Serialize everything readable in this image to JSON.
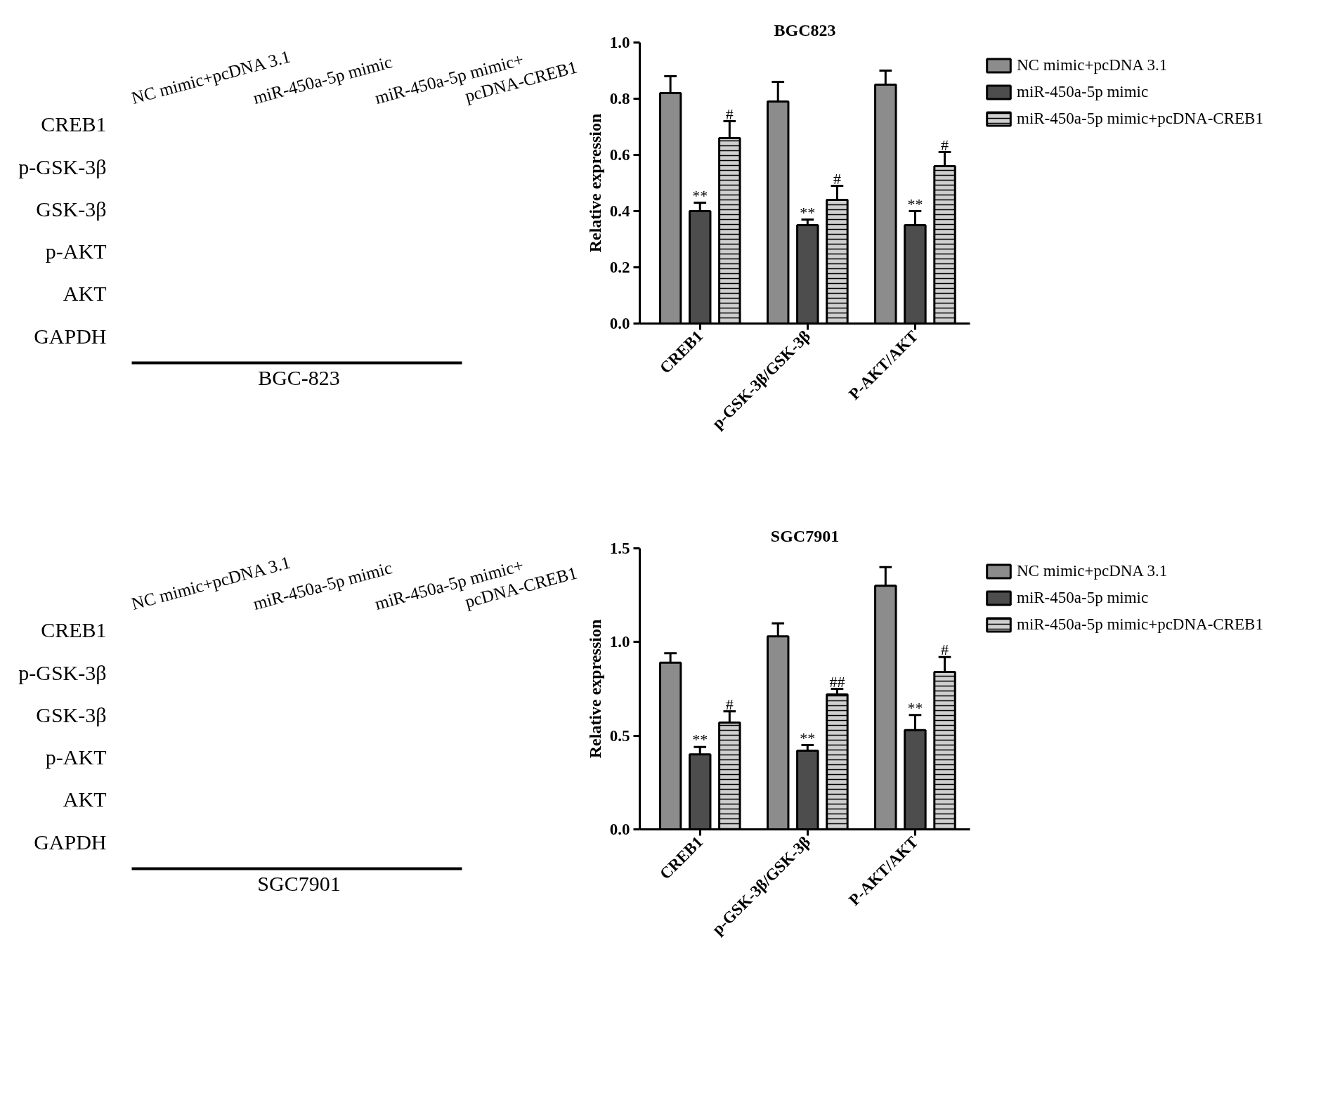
{
  "chart_data": [
    {
      "type": "other",
      "categories": [
        "NC mimic+pcDNA 3.1",
        "miR-450a-5p mimic",
        "miR-450a-5p mimic+\npcDNA-CREB1"
      ],
      "y_categories": [
        "CREB1",
        "p-GSK-3β",
        "GSK-3β",
        "p-AKT",
        "AKT",
        "GAPDH"
      ],
      "xlabel": "BGC-823"
    },
    {
      "type": "bar",
      "title": "BGC823",
      "ylabel": "Relative expression",
      "categories": [
        "CREB1",
        "p-GSK-3β/GSK-3β",
        "P-AKT/AKT"
      ],
      "series": [
        {
          "name": "NC mimic+pcDNA 3.1",
          "color": "#8c8c8c",
          "values": [
            0.82,
            0.79,
            0.85
          ],
          "errors": [
            0.06,
            0.07,
            0.05
          ]
        },
        {
          "name": "miR-450a-5p mimic",
          "color": "#4d4d4d",
          "values": [
            0.4,
            0.35,
            0.35
          ],
          "errors": [
            0.03,
            0.02,
            0.05
          ],
          "value_labels": [
            "**",
            "**",
            "**"
          ]
        },
        {
          "name": "miR-450a-5p mimic+pcDNA-CREB1",
          "color": "#cfcfcf",
          "values": [
            0.66,
            0.44,
            0.56
          ],
          "errors": [
            0.06,
            0.05,
            0.05
          ],
          "value_labels": [
            "#",
            "#",
            "#"
          ]
        }
      ],
      "ylim": [
        0,
        1.0
      ],
      "yticks": [
        {
          "value": 0,
          "label": "0.0"
        },
        {
          "value": 0.2,
          "label": "0.2"
        },
        {
          "value": 0.4,
          "label": "0.4"
        },
        {
          "value": 0.6,
          "label": "0.6"
        },
        {
          "value": 0.8,
          "label": "0.8"
        },
        {
          "value": 1.0,
          "label": "1.0"
        }
      ],
      "legend": "top right"
    },
    {
      "type": "other",
      "categories": [
        "NC mimic+pcDNA 3.1",
        "miR-450a-5p mimic",
        "miR-450a-5p mimic+\npcDNA-CREB1"
      ],
      "y_categories": [
        "CREB1",
        "p-GSK-3β",
        "GSK-3β",
        "p-AKT",
        "AKT",
        "GAPDH"
      ],
      "xlabel": "SGC7901"
    },
    {
      "type": "bar",
      "title": "SGC7901",
      "ylabel": "Relative expression",
      "categories": [
        "CREB1",
        "p-GSK-3β/GSK-3β",
        "P-AKT/AKT"
      ],
      "series": [
        {
          "name": "NC mimic+pcDNA 3.1",
          "color": "#8c8c8c",
          "values": [
            0.89,
            1.03,
            1.3
          ],
          "errors": [
            0.05,
            0.07,
            0.1
          ]
        },
        {
          "name": "miR-450a-5p mimic",
          "color": "#4d4d4d",
          "values": [
            0.4,
            0.42,
            0.53
          ],
          "errors": [
            0.04,
            0.03,
            0.08
          ],
          "value_labels": [
            "**",
            "**",
            "**"
          ]
        },
        {
          "name": "miR-450a-5p mimic+pcDNA-CREB1",
          "color": "#cfcfcf",
          "values": [
            0.57,
            0.72,
            0.84
          ],
          "errors": [
            0.06,
            0.03,
            0.08
          ],
          "value_labels": [
            "#",
            "##",
            "#"
          ]
        }
      ],
      "ylim": [
        0,
        1.5
      ],
      "yticks": [
        {
          "value": 0,
          "label": "0.0"
        },
        {
          "value": 0.5,
          "label": "0.5"
        },
        {
          "value": 1.0,
          "label": "1.0"
        },
        {
          "value": 1.5,
          "label": "1.5"
        }
      ],
      "legend": "top right"
    }
  ]
}
